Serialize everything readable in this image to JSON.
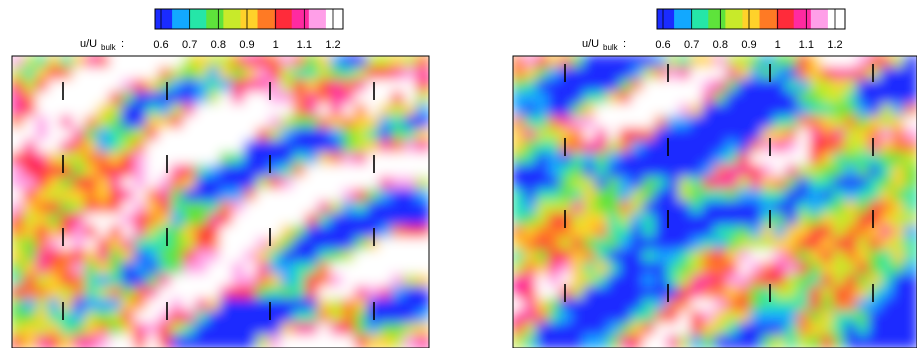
{
  "colorbar": {
    "label_prefix": "u/U",
    "label_sub": "bulk",
    "label_suffix": ":",
    "ticks": [
      0.6,
      0.7,
      0.8,
      0.9,
      1,
      1.1,
      1.2
    ],
    "tick_labels": [
      "0.6",
      "0.7",
      "0.8",
      "0.9",
      "1",
      "1.1",
      "1.2"
    ],
    "colors": [
      "#1a2bff",
      "#12a8ff",
      "#25e6a8",
      "#5ee33b",
      "#c8ea2a",
      "#ffd22a",
      "#ff7a24",
      "#ff2b3a",
      "#ff2aa0",
      "#ff9fe8",
      "#ffffff"
    ]
  },
  "chart_data": [
    {
      "type": "heatmap",
      "panel": "left",
      "variable": "u/U_bulk",
      "zlim": [
        0.6,
        1.2
      ],
      "tick_marks_grid": {
        "columns": 4,
        "rows": 4
      },
      "qualitative": "predominantly high values (0.9–1.2), red/magenta patches, blue band near bottom"
    },
    {
      "type": "heatmap",
      "panel": "right",
      "variable": "u/U_bulk",
      "zlim": [
        0.6,
        1.2
      ],
      "tick_marks_grid": {
        "columns": 4,
        "rows": 4
      },
      "qualitative": "predominantly lower values (0.65–0.95), green/blue with sparse red spots"
    }
  ]
}
